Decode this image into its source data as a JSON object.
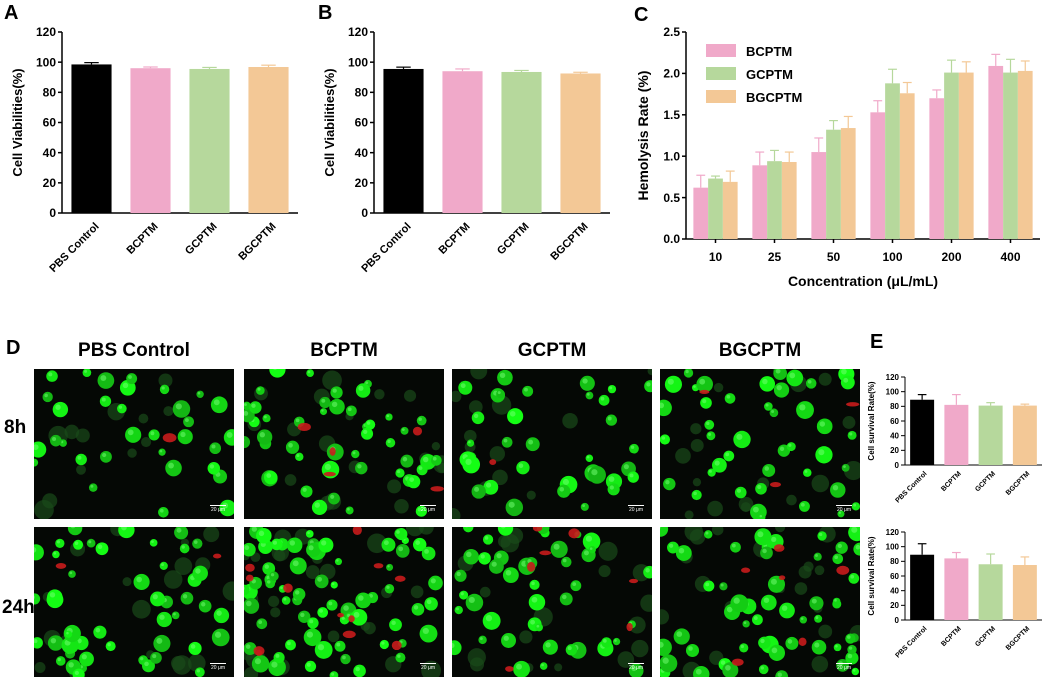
{
  "panels": {
    "A": "A",
    "B": "B",
    "C": "C",
    "D": "D",
    "E": "E"
  },
  "colors": {
    "PBS Control": "#000000",
    "BCPTM": "#f0a9c9",
    "GCPTM": "#b6d89c",
    "BGCPTM": "#f3c896"
  },
  "chart_data": [
    {
      "id": "A",
      "type": "bar",
      "categories": [
        "PBS Control",
        "BCPTM",
        "GCPTM",
        "BGCPTM"
      ],
      "values": [
        98.5,
        96,
        95.5,
        96.8
      ],
      "errors": [
        1.2,
        0.8,
        1.0,
        1.2
      ],
      "xlabel": "",
      "ylabel": "Cell Viabilities(%)",
      "ylim": [
        0,
        120
      ],
      "yticks": [
        0,
        20,
        40,
        60,
        80,
        100,
        120
      ],
      "grid": false
    },
    {
      "id": "B",
      "type": "bar",
      "categories": [
        "PBS Control",
        "BCPTM",
        "GCPTM",
        "BGCPTM"
      ],
      "values": [
        95.5,
        94,
        93.5,
        92.5
      ],
      "errors": [
        1.2,
        1.5,
        1.0,
        0.8
      ],
      "xlabel": "",
      "ylabel": "Cell Viabilities(%)",
      "ylim": [
        0,
        120
      ],
      "yticks": [
        0,
        20,
        40,
        60,
        80,
        100,
        120
      ],
      "grid": false
    },
    {
      "id": "C",
      "type": "bar",
      "categories": [
        "10",
        "25",
        "50",
        "100",
        "200",
        "400"
      ],
      "series": [
        {
          "name": "BCPTM",
          "values": [
            0.62,
            0.89,
            1.05,
            1.53,
            1.7,
            2.09
          ],
          "errors": [
            0.15,
            0.16,
            0.17,
            0.14,
            0.1,
            0.14
          ]
        },
        {
          "name": "GCPTM",
          "values": [
            0.73,
            0.94,
            1.32,
            1.88,
            2.01,
            2.01
          ],
          "errors": [
            0.03,
            0.13,
            0.11,
            0.17,
            0.15,
            0.16
          ]
        },
        {
          "name": "BGCPTM",
          "values": [
            0.69,
            0.93,
            1.34,
            1.76,
            2.01,
            2.03
          ],
          "errors": [
            0.13,
            0.12,
            0.14,
            0.13,
            0.13,
            0.12
          ]
        }
      ],
      "xlabel": "Concentration (μL/mL)",
      "ylabel": "Hemolysis Rate (%)",
      "ylim": [
        0,
        2.5
      ],
      "yticks": [
        0.0,
        0.5,
        1.0,
        1.5,
        2.0,
        2.5
      ],
      "grid": false,
      "legend": "top-left"
    },
    {
      "id": "E1",
      "type": "bar",
      "categories": [
        "PBS Control",
        "BCPTM",
        "GCPTM",
        "BGCPTM"
      ],
      "values": [
        89,
        82,
        81,
        81
      ],
      "errors": [
        7,
        14,
        4,
        2
      ],
      "xlabel": "",
      "ylabel": "Cell survival Rate(%)",
      "ylim": [
        0,
        120
      ],
      "yticks": [
        0,
        20,
        40,
        60,
        80,
        100,
        120
      ],
      "grid": false
    },
    {
      "id": "E2",
      "type": "bar",
      "categories": [
        "PBS Control",
        "BCPTM",
        "GCPTM",
        "BGCPTM"
      ],
      "values": [
        89,
        84,
        76,
        75
      ],
      "errors": [
        15,
        8,
        14,
        11
      ],
      "xlabel": "",
      "ylabel": "Cell survival Rate(%)",
      "ylim": [
        0,
        120
      ],
      "yticks": [
        0,
        20,
        40,
        60,
        80,
        100,
        120
      ],
      "grid": false
    }
  ],
  "microscopy": {
    "columns": [
      "PBS Control",
      "BCPTM",
      "GCPTM",
      "BGCPTM"
    ],
    "rows": [
      "8h",
      "24h"
    ],
    "scale_label": "20 μm"
  }
}
